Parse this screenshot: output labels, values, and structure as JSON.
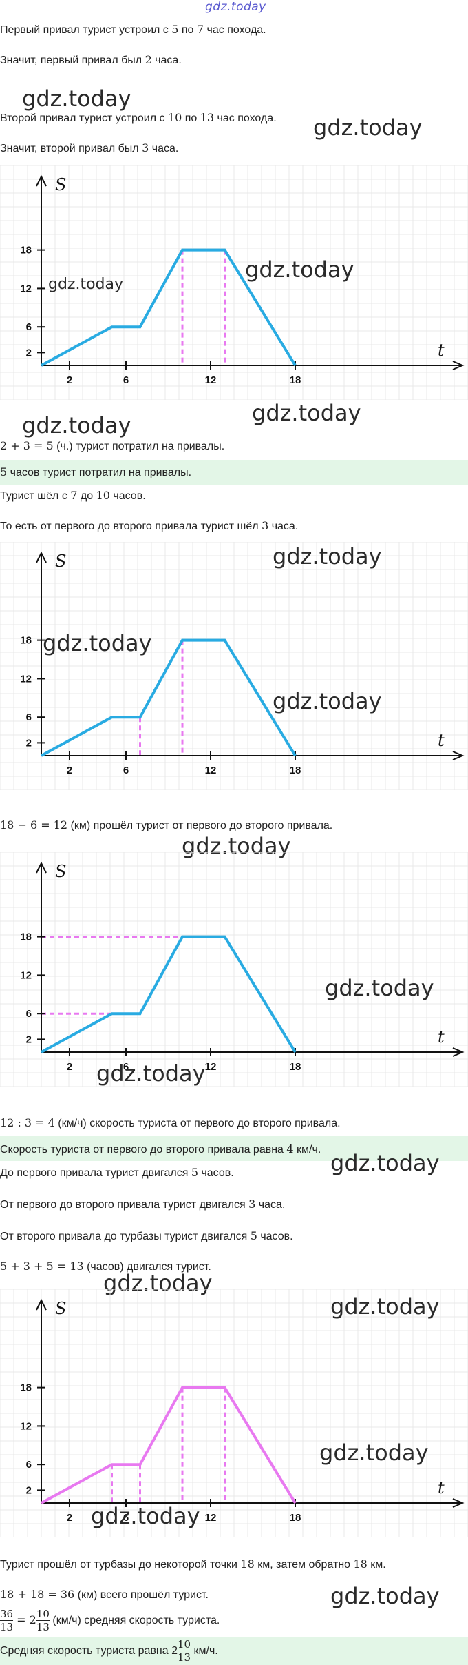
{
  "watermark": "gdz.today",
  "lines": {
    "l1_a": "Первый привал турист устроил с ",
    "l1_m1": "5",
    "l1_b": " по ",
    "l1_m2": "7",
    "l1_c": " час похода.",
    "l2_a": "Значит, первый привал был ",
    "l2_m": "2",
    "l2_b": " часа.",
    "l3_a": "Второй привал турист устроил с ",
    "l3_m1": "10",
    "l3_b": " по ",
    "l3_m2": "13",
    "l3_c": " час похода.",
    "l4_a": "Значит, второй привал был ",
    "l4_m": "3",
    "l4_b": " часа.",
    "l5_m": "2 + 3 = 5",
    "l5_b": " (ч.) турист потратил на привалы.",
    "l6_m": "5",
    "l6_b": " часов турист потратил на привалы.",
    "l7_a": "Турист шёл с ",
    "l7_m1": "7",
    "l7_b": " до ",
    "l7_m2": "10",
    "l7_c": " часов.",
    "l8_a": "То есть от первого до второго привала турист шёл ",
    "l8_m": "3",
    "l8_b": " часа.",
    "l9_m": "18 − 6 = 12",
    "l9_b": " (км) прошёл турист от первого до второго привала.",
    "l10_m": "12 : 3 = 4",
    "l10_b": " (км/ч) скорость туриста от первого до второго привала.",
    "l11_a": "Скорость туриста от первого до второго привала равна ",
    "l11_m": "4",
    "l11_b": " км/ч.",
    "l12_a": "До первого привала турист двигался ",
    "l12_m": "5",
    "l12_b": " часов.",
    "l13_a": "От первого до второго привала турист двигался ",
    "l13_m": "3",
    "l13_b": " часа.",
    "l14_a": "От второго привала до турбазы турист двигался ",
    "l14_m": "5",
    "l14_b": " часов.",
    "l15_m": "5 + 3 + 5 = 13",
    "l15_b": " (часов) двигался турист.",
    "l16_a": "Турист прошёл от турбазы до некоторой точки ",
    "l16_m": "18",
    "l16_b": " км, затем обратно ",
    "l16_m2": "18",
    "l16_c": " км.",
    "l17_m": "18 + 18 = 36",
    "l17_b": " (км) всего прошёл турист.",
    "l18_num": "36",
    "l18_den": "13",
    "l18_eq": " = 2",
    "l18_num2": "10",
    "l18_den2": "13",
    "l18_b": " (км/ч) средняя скорость туриста.",
    "l19_a": "Средняя скорость туриста равна 2",
    "l19_num": "10",
    "l19_den": "13",
    "l19_b": " км/ч."
  },
  "colors": {
    "line": "#29abe2",
    "highlight": "#e879f0",
    "axis": "#111111",
    "grid": "#e8e8e8"
  },
  "chart_data": [
    {
      "type": "line",
      "xlabel": "t",
      "ylabel": "S",
      "x": [
        0,
        5,
        7,
        10,
        13,
        18
      ],
      "y": [
        0,
        6,
        6,
        18,
        18,
        0
      ],
      "xticks": [
        2,
        6,
        12,
        18
      ],
      "yticks": [
        2,
        6,
        12,
        18
      ],
      "guides": [
        {
          "x": 10,
          "y": 18,
          "dir": "v"
        },
        {
          "x": 13,
          "y": 18,
          "dir": "v"
        }
      ],
      "grid": true
    },
    {
      "type": "line",
      "xlabel": "t",
      "ylabel": "S",
      "x": [
        0,
        5,
        7,
        10,
        13,
        18
      ],
      "y": [
        0,
        6,
        6,
        18,
        18,
        0
      ],
      "xticks": [
        2,
        6,
        12,
        18
      ],
      "yticks": [
        2,
        6,
        12,
        18
      ],
      "guides": [
        {
          "x": 7,
          "y": 6,
          "dir": "v"
        },
        {
          "x": 10,
          "y": 18,
          "dir": "v"
        }
      ],
      "grid": true
    },
    {
      "type": "line",
      "xlabel": "t",
      "ylabel": "S",
      "x": [
        0,
        5,
        7,
        10,
        13,
        18
      ],
      "y": [
        0,
        6,
        6,
        18,
        18,
        0
      ],
      "xticks": [
        2,
        6,
        12,
        18
      ],
      "yticks": [
        2,
        6,
        12,
        18
      ],
      "guides": [
        {
          "x": 5,
          "y": 6,
          "dir": "h"
        },
        {
          "x": 10,
          "y": 18,
          "dir": "h"
        }
      ],
      "grid": true
    },
    {
      "type": "line",
      "xlabel": "t",
      "ylabel": "S",
      "x": [
        0,
        5,
        7,
        10,
        13,
        18
      ],
      "y": [
        0,
        6,
        6,
        18,
        18,
        0
      ],
      "xticks": [
        2,
        6,
        12,
        18
      ],
      "yticks": [
        2,
        6,
        12,
        18
      ],
      "guides": [
        {
          "x": 5,
          "y": 6,
          "dir": "v"
        },
        {
          "x": 7,
          "y": 6,
          "dir": "v"
        },
        {
          "x": 10,
          "y": 18,
          "dir": "v"
        },
        {
          "x": 13,
          "y": 18,
          "dir": "v"
        }
      ],
      "line_color": "highlight",
      "grid": true
    }
  ]
}
